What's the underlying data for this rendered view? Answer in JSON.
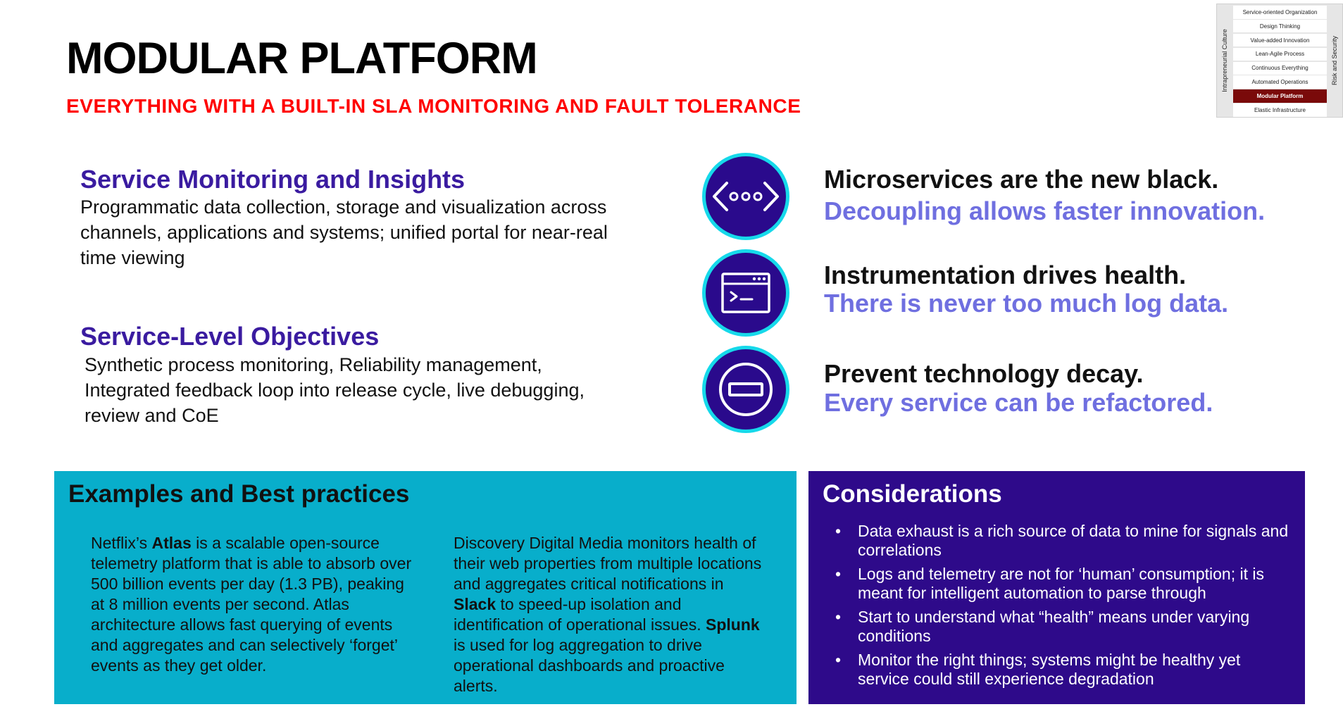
{
  "title": "MODULAR PLATFORM",
  "subtitle": "EVERYTHING WITH A BUILT-IN SLA MONITORING AND FAULT TOLERANCE",
  "framework": {
    "left_label": "Intrapreneurial Culture",
    "right_label": "Risk and Security",
    "items": [
      {
        "label": "Service-oriented Organization",
        "active": false
      },
      {
        "label": "Design Thinking",
        "active": false
      },
      {
        "label": "Value-added Innovation",
        "active": false
      },
      {
        "label": "Lean-Agile Process",
        "active": false
      },
      {
        "label": "Continuous Everything",
        "active": false
      },
      {
        "label": "Automated Operations",
        "active": false
      },
      {
        "label": "Modular Platform",
        "active": true
      },
      {
        "label": "Elastic Infrastructure",
        "active": false
      }
    ],
    "active_color": "#7a0a0a"
  },
  "monitoring": {
    "heading": "Service Monitoring and Insights",
    "body": "Programmatic data collection, storage and visualization across channels, applications and systems; unified portal for near-real time viewing"
  },
  "slo": {
    "heading": "Service-Level Objectives",
    "body": "Synthetic process monitoring, Reliability management, Integrated feedback loop into release cycle, live debugging, review and CoE"
  },
  "claims": [
    {
      "icon": "code-brackets-icon",
      "title": "Microservices are the new black.",
      "subtitle": "Decoupling allows faster innovation."
    },
    {
      "icon": "terminal-window-icon",
      "title": "Instrumentation drives health.",
      "subtitle": "There is never too much log data."
    },
    {
      "icon": "no-entry-icon",
      "title": "Prevent technology decay.",
      "subtitle": "Every service can be refactored."
    }
  ],
  "examples": {
    "heading": "Examples and Best practices",
    "left": {
      "prefix": "Netflix’s ",
      "bold": "Atlas",
      "rest": " is a scalable open-source telemetry platform that is able to absorb over 500 billion events per day (1.3 PB), peaking at 8 million events per second. Atlas architecture allows fast querying of events and aggregates and can selectively ‘forget’ events as they get older."
    },
    "right": {
      "part1": "Discovery Digital Media monitors health of their web properties from multiple locations and aggregates critical notifications in ",
      "bold1": "Slack",
      "part2": " to speed-up isolation and identification of operational issues. ",
      "bold2": "Splunk",
      "part3": " is used for log aggregation to drive operational dashboards and proactive alerts."
    }
  },
  "considerations": {
    "heading": "Considerations",
    "bullet": "•",
    "items": [
      "Data exhaust is a rich source of data to mine for signals and correlations",
      "Logs and telemetry are not for ‘human’ consumption; it is meant for intelligent automation to parse through",
      "Start to understand what “health” means under varying conditions",
      "Monitor the right things; systems might be healthy yet service could still experience degradation"
    ]
  },
  "colors": {
    "title": "#000000",
    "subtitle": "#ff0000",
    "heading_purple": "#3a1ba0",
    "claim_sub": "#6f6fe0",
    "icon_fill": "#2a0a8c",
    "icon_ring": "#16d9ea",
    "examples_bg": "#08aecb",
    "considerations_bg": "#2e0a8a"
  }
}
